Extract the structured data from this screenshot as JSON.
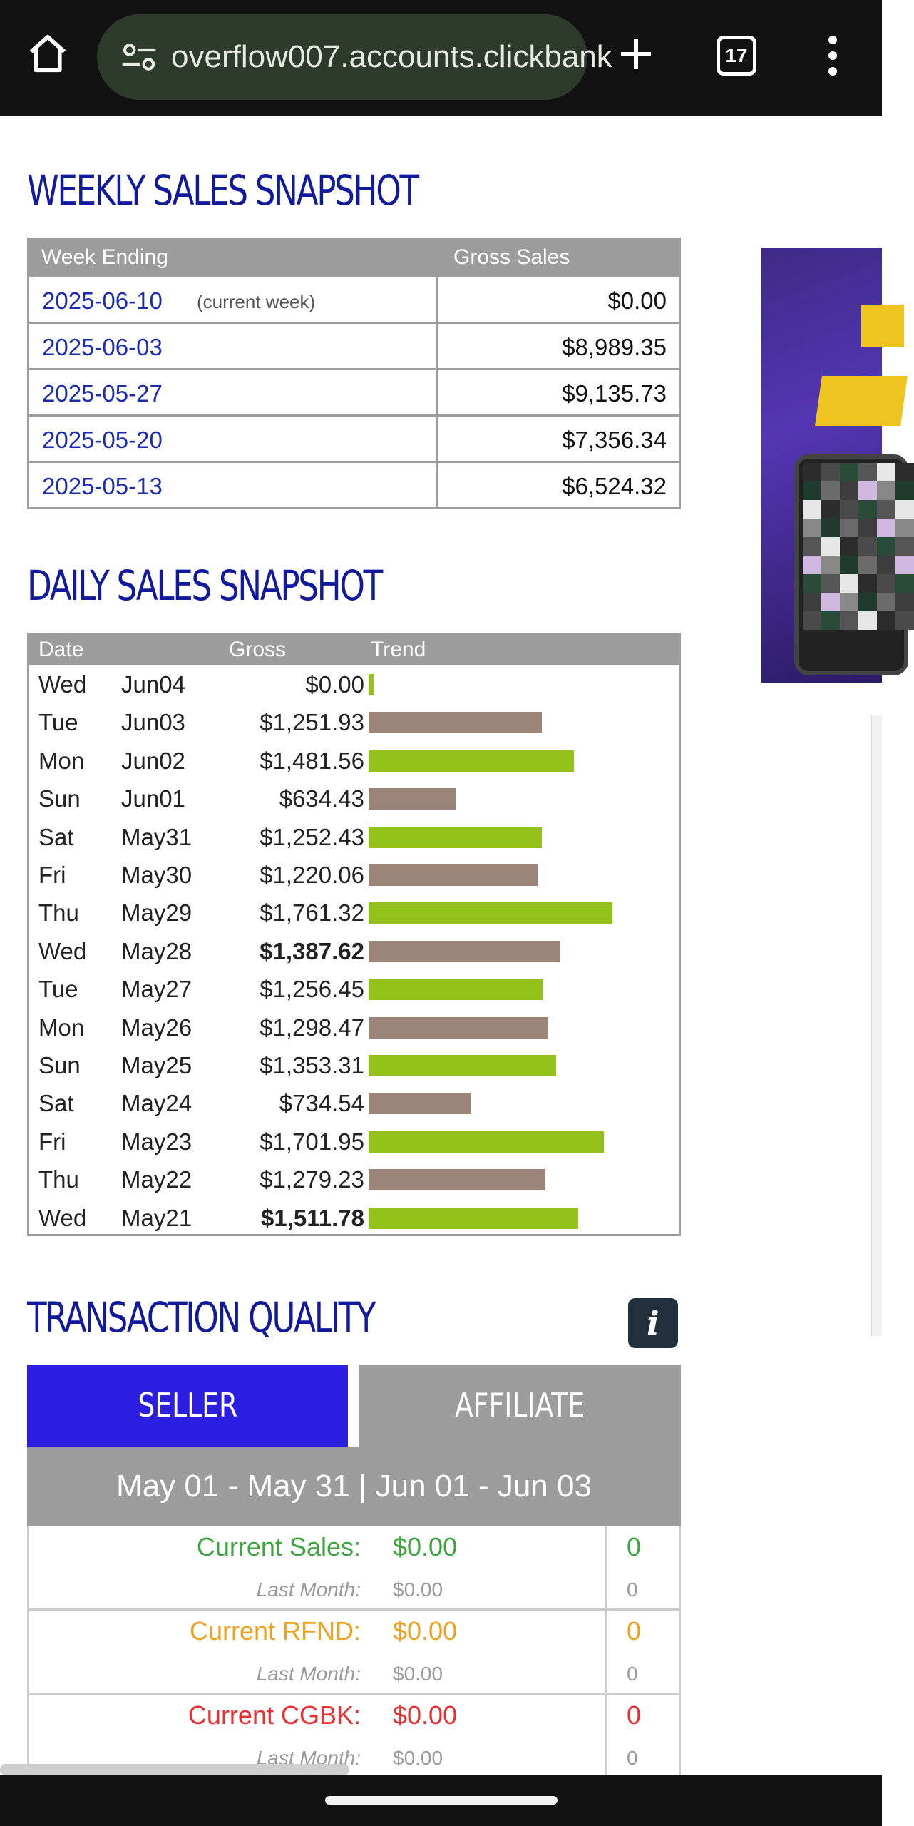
{
  "browser": {
    "url": "overflow007.accounts.clickbank",
    "tab_count": "17"
  },
  "weekly": {
    "title": "WEEKLY SALES SNAPSHOT",
    "col_week": "Week Ending",
    "col_gross": "Gross Sales",
    "rows": [
      {
        "date": "2025-06-10",
        "note": "(current week)",
        "amount": "$0.00"
      },
      {
        "date": "2025-06-03",
        "note": "",
        "amount": "$8,989.35"
      },
      {
        "date": "2025-05-27",
        "note": "",
        "amount": "$9,135.73"
      },
      {
        "date": "2025-05-20",
        "note": "",
        "amount": "$7,356.34"
      },
      {
        "date": "2025-05-13",
        "note": "",
        "amount": "$6,524.32"
      }
    ]
  },
  "daily": {
    "title": "DAILY SALES SNAPSHOT",
    "col_date": "Date",
    "col_gross": "Gross",
    "col_trend": "Trend",
    "colors": {
      "even": "#9d8478",
      "odd": "#94c11c"
    },
    "rows": [
      {
        "dow": "Wed",
        "md": "Jun04",
        "gross": "$0.00",
        "value": 0,
        "bold": false
      },
      {
        "dow": "Tue",
        "md": "Jun03",
        "gross": "$1,251.93",
        "value": 1251.93,
        "bold": false
      },
      {
        "dow": "Mon",
        "md": "Jun02",
        "gross": "$1,481.56",
        "value": 1481.56,
        "bold": false
      },
      {
        "dow": "Sun",
        "md": "Jun01",
        "gross": "$634.43",
        "value": 634.43,
        "bold": false
      },
      {
        "dow": "Sat",
        "md": "May31",
        "gross": "$1,252.43",
        "value": 1252.43,
        "bold": false
      },
      {
        "dow": "Fri",
        "md": "May30",
        "gross": "$1,220.06",
        "value": 1220.06,
        "bold": false
      },
      {
        "dow": "Thu",
        "md": "May29",
        "gross": "$1,761.32",
        "value": 1761.32,
        "bold": false
      },
      {
        "dow": "Wed",
        "md": "May28",
        "gross": "$1,387.62",
        "value": 1387.62,
        "bold": true
      },
      {
        "dow": "Tue",
        "md": "May27",
        "gross": "$1,256.45",
        "value": 1256.45,
        "bold": false
      },
      {
        "dow": "Mon",
        "md": "May26",
        "gross": "$1,298.47",
        "value": 1298.47,
        "bold": false
      },
      {
        "dow": "Sun",
        "md": "May25",
        "gross": "$1,353.31",
        "value": 1353.31,
        "bold": false
      },
      {
        "dow": "Sat",
        "md": "May24",
        "gross": "$734.54",
        "value": 734.54,
        "bold": false
      },
      {
        "dow": "Fri",
        "md": "May23",
        "gross": "$1,701.95",
        "value": 1701.95,
        "bold": false
      },
      {
        "dow": "Thu",
        "md": "May22",
        "gross": "$1,279.23",
        "value": 1279.23,
        "bold": false
      },
      {
        "dow": "Wed",
        "md": "May21",
        "gross": "$1,511.78",
        "value": 1511.78,
        "bold": true
      }
    ]
  },
  "quality": {
    "title": "TRANSACTION QUALITY",
    "tab_seller": "SELLER",
    "tab_affiliate": "AFFILIATE",
    "period": "May 01 - May 31 | Jun 01 - Jun 03",
    "last_label": "Last Month:",
    "rows": [
      {
        "label": "Current Sales:",
        "value": "$0.00",
        "count": "0",
        "last_value": "$0.00",
        "last_count": "0",
        "color": "#3ea43e"
      },
      {
        "label": "Current RFND:",
        "value": "$0.00",
        "count": "0",
        "last_value": "$0.00",
        "last_count": "0",
        "color": "#f0a01c"
      },
      {
        "label": "Current CGBK:",
        "value": "$0.00",
        "count": "0",
        "last_value": "$0.00",
        "last_count": "0",
        "color": "#e83030"
      }
    ]
  },
  "icons": [
    "home-icon",
    "site-settings-icon",
    "new-tab-plus-icon",
    "tab-switcher-icon",
    "overflow-menu-icon",
    "info-icon"
  ]
}
